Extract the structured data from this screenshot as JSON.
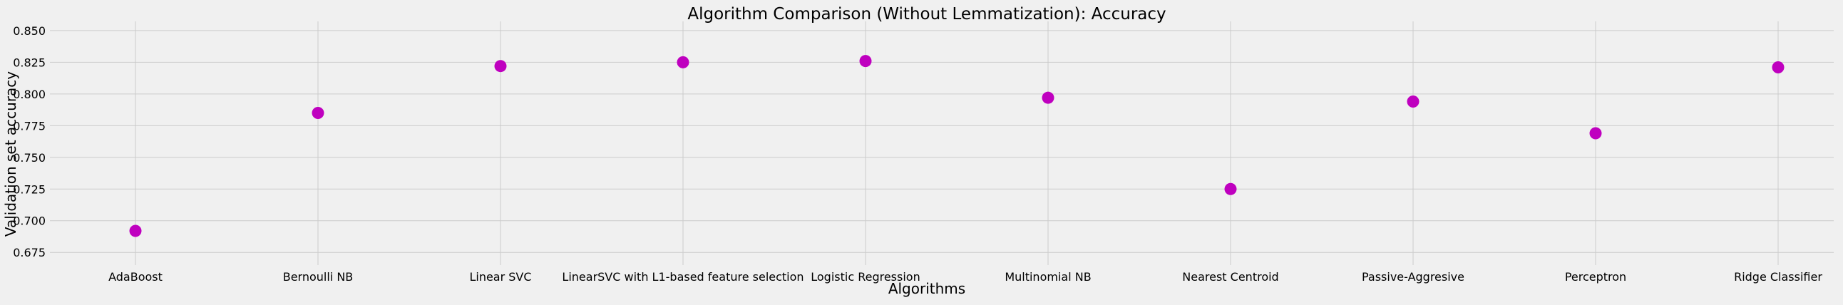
{
  "chart_data": {
    "type": "scatter",
    "title": "Algorithm Comparison (Without Lemmatization): Accuracy",
    "xlabel": "Algorithms",
    "ylabel": "Validation set accuracy",
    "categories": [
      "AdaBoost",
      "Bernoulli NB",
      "Linear SVC",
      "LinearSVC with L1-based feature selection",
      "Logistic Regression",
      "Multinomial NB",
      "Nearest Centroid",
      "Passive-Aggresive",
      "Perceptron",
      "Ridge Classifier"
    ],
    "series": [
      {
        "values": [
          0.692,
          0.785,
          0.822,
          0.825,
          0.826,
          0.797,
          0.725,
          0.794,
          0.769,
          0.821
        ]
      }
    ],
    "ylim": [
      0.665,
      0.855
    ],
    "yticks": [
      0.675,
      0.7,
      0.725,
      0.75,
      0.775,
      0.8,
      0.825,
      0.85
    ],
    "ytick_labels": [
      "0.675",
      "0.700",
      "0.725",
      "0.750",
      "0.775",
      "0.800",
      "0.825",
      "0.850"
    ],
    "grid": true,
    "marker_color": "#bf00bf",
    "background_color": "#f0f0f0",
    "grid_color": "#cbcbcb"
  }
}
